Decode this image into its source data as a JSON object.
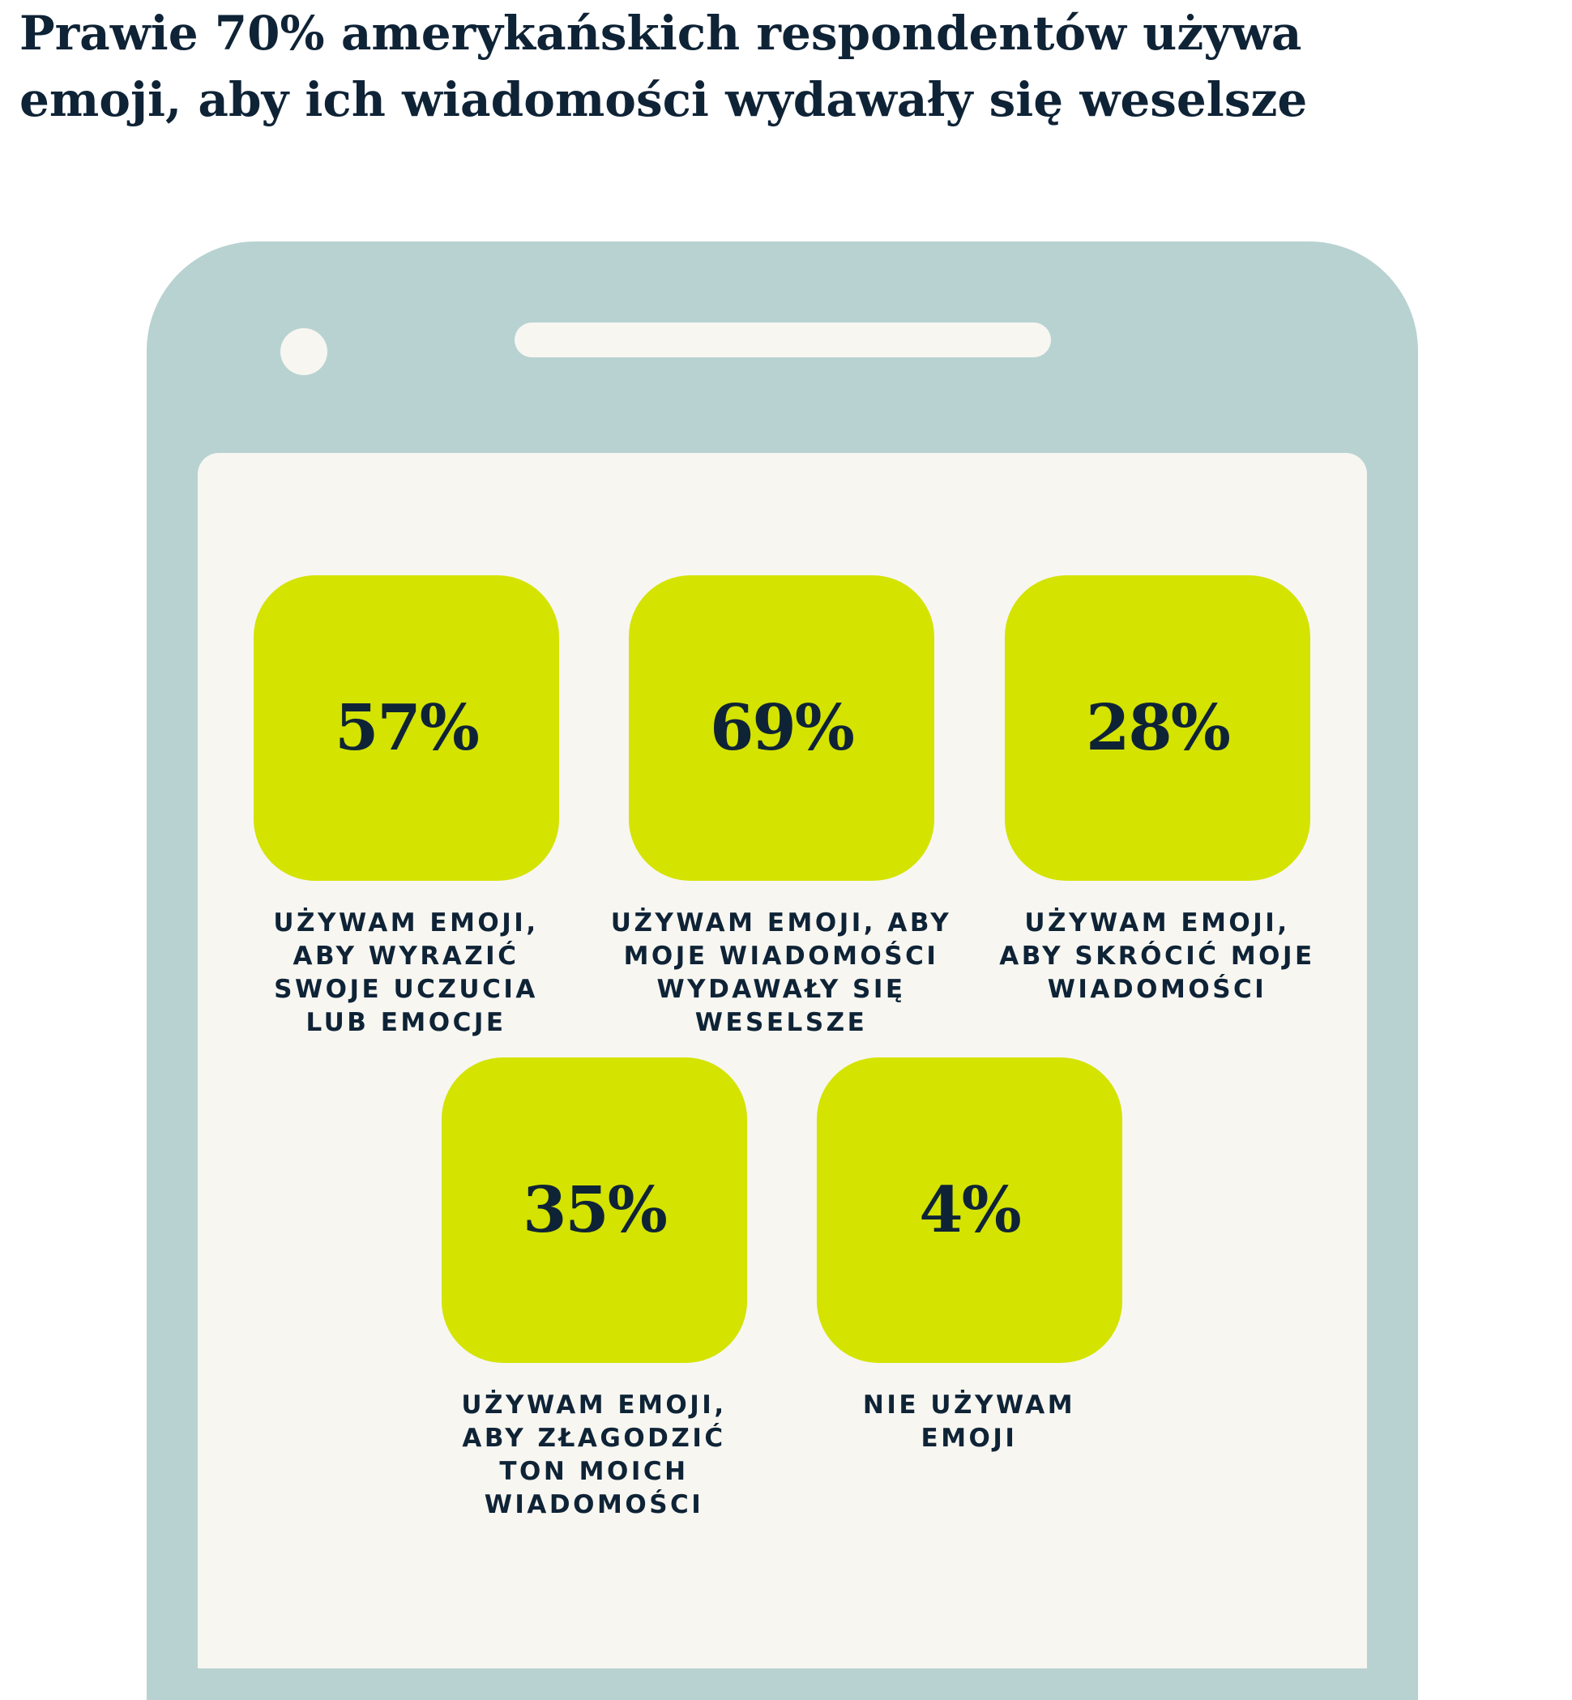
{
  "title": {
    "lines": [
      "Prawie 70% amerykańskich respondentów używa",
      "emoji, aby ich wiadomości wydawały się weselsze"
    ]
  },
  "colors": {
    "phone": "#b8d2d1",
    "screen": "#f7f6f1",
    "tile": "#d4e300",
    "text": "#0f2336"
  },
  "chart_data": {
    "type": "table",
    "categories": [
      "UŻYWAM EMOJI, ABY WYRAZIĆ SWOJE UCZUCIA LUB EMOCJE",
      "UŻYWAM EMOJI, ABY MOJE WIADOMOŚCI WYDAWAŁY SIĘ WESELSZE",
      "UŻYWAM EMOJI, ABY SKRÓCIĆ MOJE WIADOMOŚCI",
      "UŻYWAM EMOJI, ABY ZŁAGODZIĆ TON MOICH WIADOMOŚCI",
      "NIE UŻYWAM EMOJI"
    ],
    "values": [
      57,
      69,
      28,
      35,
      4
    ],
    "unit": "%"
  },
  "stats": [
    {
      "value": "57%",
      "label": [
        "UŻYWAM EMOJI,",
        "ABY WYRAZIĆ",
        "SWOJE UCZUCIA",
        "LUB EMOCJE"
      ]
    },
    {
      "value": "69%",
      "label": [
        "UŻYWAM EMOJI, ABY",
        "MOJE WIADOMOŚCI",
        "WYDAWAŁY SIĘ",
        "WESELSZE"
      ]
    },
    {
      "value": "28%",
      "label": [
        "UŻYWAM EMOJI,",
        "ABY SKRÓCIĆ MOJE",
        "WIADOMOŚCI"
      ]
    },
    {
      "value": "35%",
      "label": [
        "UŻYWAM EMOJI,",
        "ABY ZŁAGODZIĆ",
        "TON MOICH",
        "WIADOMOŚCI"
      ]
    },
    {
      "value": "4%",
      "label": [
        "NIE UŻYWAM",
        "EMOJI"
      ]
    }
  ]
}
